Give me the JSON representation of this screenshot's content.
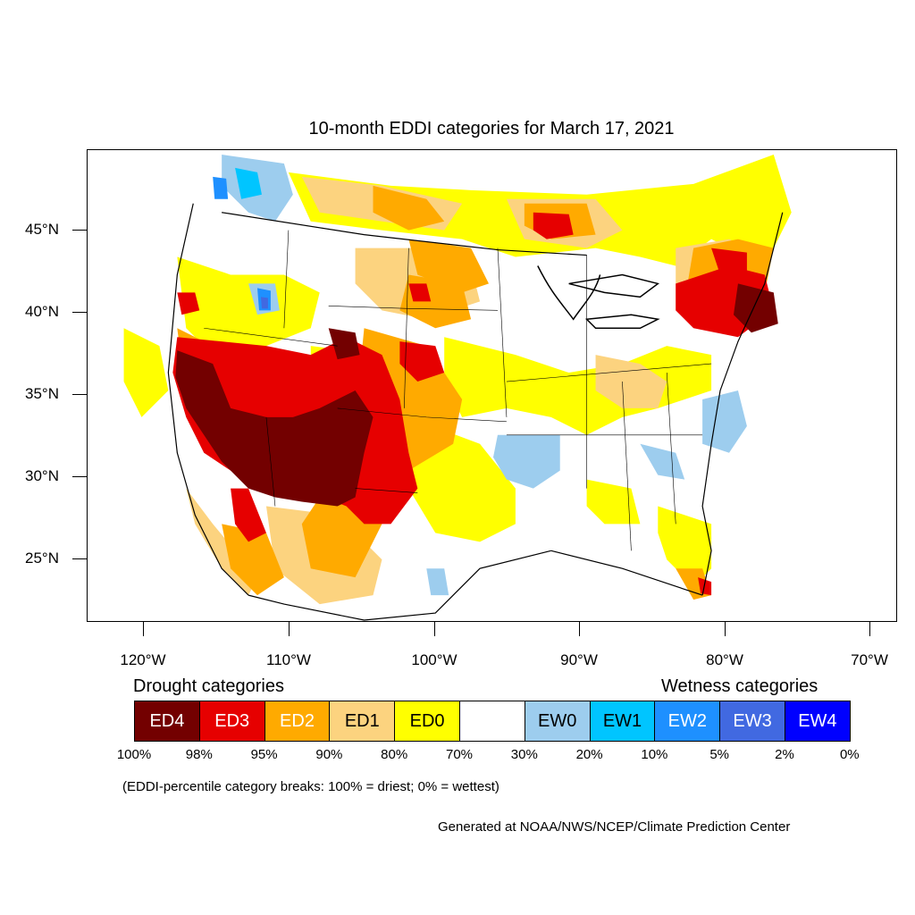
{
  "title": "10-month EDDI categories for March 17, 2021",
  "lat_labels": [
    "45°N",
    "40°N",
    "35°N",
    "30°N",
    "25°N"
  ],
  "lon_labels": [
    "120°W",
    "110°W",
    "100°W",
    "90°W",
    "80°W",
    "70°W"
  ],
  "legend": {
    "drought_title": "Drought categories",
    "wetness_title": "Wetness categories",
    "categories": [
      {
        "label": "ED4",
        "color": "#730000",
        "text_color": "#ffffff"
      },
      {
        "label": "ED3",
        "color": "#e60000",
        "text_color": "#ffffff"
      },
      {
        "label": "ED2",
        "color": "#ffaa00",
        "text_color": "#ffffff"
      },
      {
        "label": "ED1",
        "color": "#fcd37f",
        "text_color": "#000000"
      },
      {
        "label": "ED0",
        "color": "#ffff00",
        "text_color": "#000000"
      },
      {
        "label": "",
        "color": "#ffffff",
        "text_color": "#000000"
      },
      {
        "label": "EW0",
        "color": "#9dcdee",
        "text_color": "#000000"
      },
      {
        "label": "EW1",
        "color": "#00c5ff",
        "text_color": "#000000"
      },
      {
        "label": "EW2",
        "color": "#1e90ff",
        "text_color": "#ffffff"
      },
      {
        "label": "EW3",
        "color": "#4169e1",
        "text_color": "#ffffff"
      },
      {
        "label": "EW4",
        "color": "#0000ff",
        "text_color": "#ffffff"
      }
    ],
    "percentiles": [
      "100%",
      "98%",
      "95%",
      "90%",
      "80%",
      "70%",
      "30%",
      "20%",
      "10%",
      "5%",
      "2%",
      "0%"
    ]
  },
  "note": "(EDDI-percentile category breaks: 100% = driest; 0% = wettest)",
  "credit": "Generated at NOAA/NWS/NCEP/Climate Prediction Center"
}
